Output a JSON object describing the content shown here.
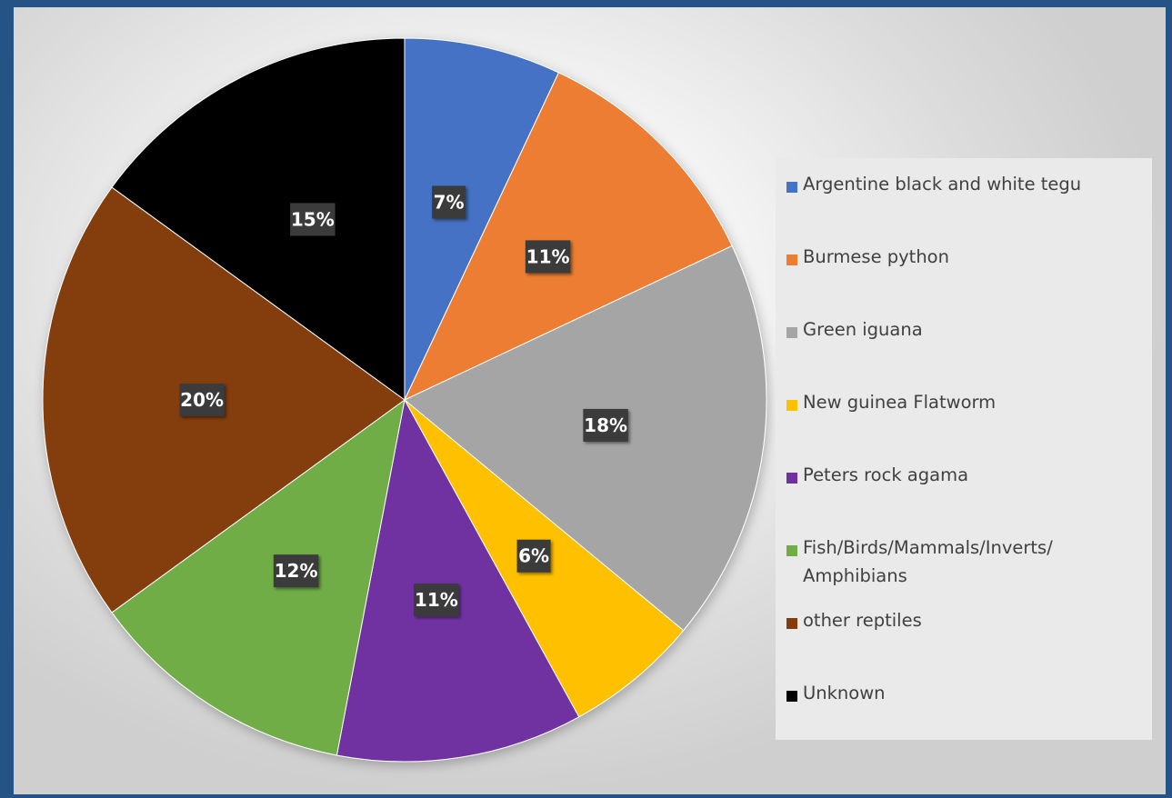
{
  "chart_data": {
    "type": "pie",
    "title": "",
    "legend_position": "right",
    "slices": [
      {
        "label": "Argentine black and white tegu",
        "value": 7,
        "display": "7%",
        "color": "#4472C4"
      },
      {
        "label": "Burmese python",
        "value": 11,
        "display": "11%",
        "color": "#ED7D31"
      },
      {
        "label": "Green iguana",
        "value": 18,
        "display": "18%",
        "color": "#A5A5A5"
      },
      {
        "label": "New guinea Flatworm",
        "value": 6,
        "display": "6%",
        "color": "#FFC000"
      },
      {
        "label": "Peters rock agama",
        "value": 11,
        "display": "11%",
        "color": "#7030A0"
      },
      {
        "label": "Fish/Birds/Mammals/Inverts/ Amphibians",
        "value": 12,
        "display": "12%",
        "color": "#70AD47"
      },
      {
        "label": "other reptiles",
        "value": 20,
        "display": "20%",
        "color": "#843C0C"
      },
      {
        "label": "Unknown",
        "value": 15,
        "display": "15%",
        "color": "#000000"
      }
    ]
  }
}
